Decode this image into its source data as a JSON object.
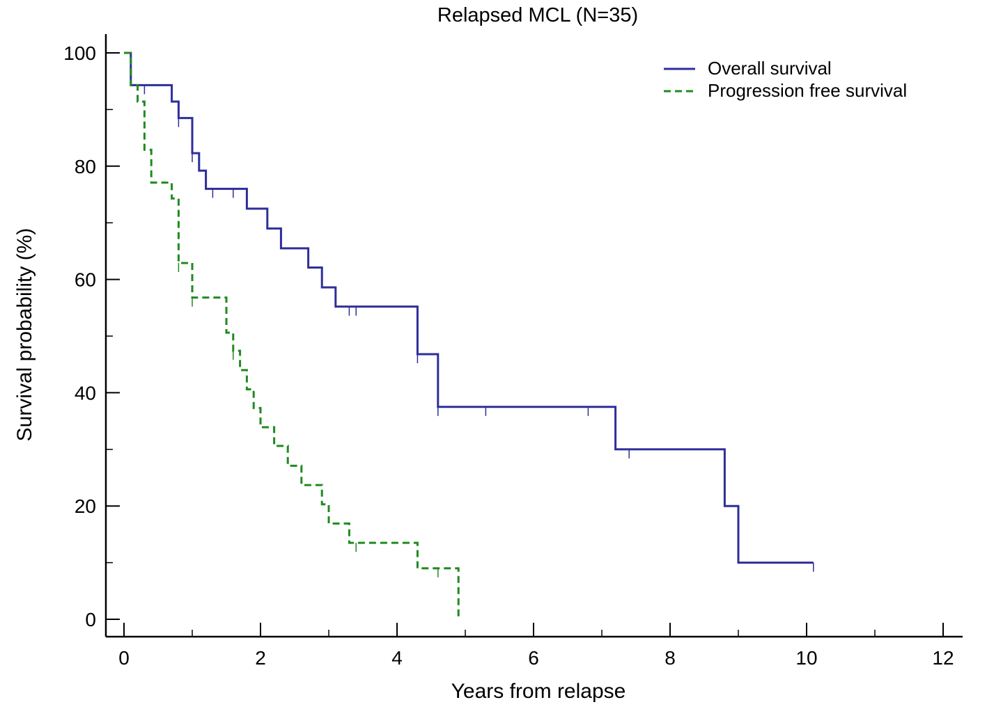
{
  "chart_data": {
    "type": "line",
    "step": true,
    "title": "Relapsed MCL (N=35)",
    "xlabel": "Years from relapse",
    "ylabel": "Survival probability (%)",
    "xlim": [
      0,
      12
    ],
    "ylim": [
      0,
      100
    ],
    "x_ticks": [
      0,
      2,
      4,
      6,
      8,
      10,
      12
    ],
    "y_ticks": [
      0,
      20,
      40,
      60,
      80,
      100
    ],
    "x_minor_ticks": [
      1,
      3,
      5,
      7,
      9,
      11
    ],
    "y_minor_ticks": [
      10,
      30,
      50,
      70,
      90
    ],
    "grid": false,
    "legend_position": "top-right",
    "series": [
      {
        "name": "Overall survival",
        "color": "#2e2e9a",
        "dash": "solid",
        "x": [
          0,
          0.1,
          0.7,
          0.8,
          1.0,
          1.1,
          1.2,
          1.8,
          2.1,
          2.3,
          2.7,
          2.9,
          3.1,
          4.3,
          4.6,
          7.2,
          8.8,
          9.0,
          10.1
        ],
        "y": [
          100,
          94.3,
          91.4,
          88.5,
          82.3,
          79.2,
          76.0,
          72.5,
          69.0,
          65.5,
          62.1,
          58.6,
          55.2,
          46.8,
          37.5,
          30.0,
          20.0,
          10.0,
          10.0
        ],
        "censored": [
          {
            "x": 0.3,
            "y": 94.3
          },
          {
            "x": 0.8,
            "y": 88.5
          },
          {
            "x": 1.0,
            "y": 82.3
          },
          {
            "x": 1.3,
            "y": 76.0
          },
          {
            "x": 1.6,
            "y": 76.0
          },
          {
            "x": 3.3,
            "y": 55.2
          },
          {
            "x": 3.4,
            "y": 55.2
          },
          {
            "x": 4.3,
            "y": 46.8
          },
          {
            "x": 4.6,
            "y": 37.5
          },
          {
            "x": 5.3,
            "y": 37.5
          },
          {
            "x": 6.8,
            "y": 37.5
          },
          {
            "x": 7.4,
            "y": 30.0
          },
          {
            "x": 10.1,
            "y": 10.0
          }
        ]
      },
      {
        "name": "Progression free survival",
        "color": "#1f8a1f",
        "dash": "dashed",
        "x": [
          0,
          0.1,
          0.2,
          0.3,
          0.4,
          0.7,
          0.8,
          1.0,
          1.5,
          1.6,
          1.7,
          1.8,
          1.9,
          2.0,
          2.2,
          2.4,
          2.6,
          2.9,
          3.0,
          3.3,
          4.3,
          4.9,
          4.9
        ],
        "y": [
          100,
          94.3,
          91.4,
          82.9,
          77.1,
          74.3,
          62.9,
          56.8,
          50.6,
          47.4,
          44.0,
          40.6,
          37.3,
          33.9,
          30.6,
          27.1,
          23.7,
          20.3,
          16.9,
          13.5,
          9.0,
          9.0,
          0
        ],
        "censored": [
          {
            "x": 0.8,
            "y": 62.9
          },
          {
            "x": 1.0,
            "y": 56.8
          },
          {
            "x": 1.6,
            "y": 47.4
          },
          {
            "x": 3.4,
            "y": 13.5
          },
          {
            "x": 4.6,
            "y": 9.0
          }
        ]
      }
    ]
  }
}
